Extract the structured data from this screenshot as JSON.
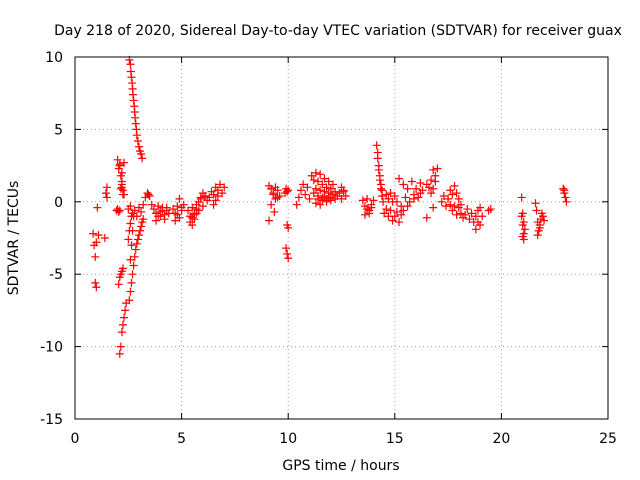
{
  "chart_data": {
    "type": "scatter",
    "title": "Day 218 of 2020, Sidereal Day-to-day VTEC variation (SDTVAR) for receiver guax",
    "xlabel": "GPS time / hours",
    "ylabel": "SDTVAR / TECUs",
    "xlim": [
      0,
      25
    ],
    "ylim": [
      -15,
      10
    ],
    "xticks": [
      0,
      5,
      10,
      15,
      20,
      25
    ],
    "xtick_labels": [
      "0",
      "5",
      "10",
      "15",
      "20",
      "25"
    ],
    "yticks": [
      -15,
      -10,
      -5,
      0,
      5,
      10
    ],
    "ytick_labels": [
      "-15",
      "-10",
      "-5",
      "0",
      "5",
      "10"
    ],
    "grid": true,
    "marker": "+",
    "color": "#ff0000",
    "series": [
      {
        "name": "SDTVAR",
        "x": [
          0.85,
          0.9,
          0.95,
          1.0,
          1.05,
          1.1,
          0.95,
          1.0,
          1.4,
          1.45,
          1.5,
          1.5,
          1.95,
          2.0,
          2.05,
          2.1,
          2.15,
          2.2,
          2.2,
          2.25,
          2.0,
          2.1,
          2.2,
          2.3,
          2.05,
          2.1,
          2.15,
          2.2,
          2.25,
          2.3,
          2.05,
          2.1,
          2.15,
          2.2,
          2.25,
          2.1,
          2.15,
          2.2,
          2.25,
          2.3,
          2.35,
          2.4,
          2.55,
          2.6,
          2.62,
          2.65,
          2.68,
          2.7,
          2.72,
          2.75,
          2.78,
          2.8,
          2.82,
          2.85,
          2.88,
          2.9,
          2.95,
          3.0,
          3.05,
          3.1,
          3.15,
          2.55,
          2.6,
          2.65,
          2.7,
          2.75,
          2.8,
          2.85,
          2.9,
          2.95,
          3.0,
          3.05,
          3.1,
          3.15,
          3.2,
          2.5,
          2.55,
          2.6,
          2.65,
          2.6,
          2.65,
          2.7,
          2.75,
          2.5,
          2.6,
          2.7,
          2.8,
          2.9,
          3.0,
          3.1,
          3.2,
          3.3,
          3.4,
          3.45,
          3.5,
          3.6,
          3.7,
          3.8,
          3.9,
          4.0,
          4.1,
          4.2,
          4.3,
          4.4,
          3.8,
          3.9,
          4.0,
          4.1,
          4.2,
          4.3,
          4.6,
          4.7,
          4.8,
          4.9,
          5.0,
          5.1,
          4.7,
          4.8,
          4.9,
          5.0,
          5.3,
          5.4,
          5.5,
          5.6,
          5.7,
          5.8,
          5.9,
          6.0,
          6.1,
          6.2,
          5.4,
          5.5,
          5.6,
          5.7,
          5.8,
          5.9,
          6.0,
          6.1,
          5.5,
          5.6,
          5.7,
          6.3,
          6.4,
          6.5,
          6.6,
          6.7,
          6.8,
          6.9,
          7.0,
          6.5,
          6.6,
          6.7,
          9.1,
          9.2,
          9.3,
          9.4,
          9.5,
          9.6,
          9.2,
          9.3,
          9.4,
          9.5,
          9.1,
          9.35,
          9.85,
          9.9,
          9.95,
          10.0,
          9.95,
          10.0,
          9.9,
          9.95,
          10.0,
          10.4,
          10.5,
          10.6,
          10.7,
          10.8,
          10.9,
          11.0,
          11.1,
          11.2,
          11.3,
          11.4,
          11.5,
          11.6,
          11.7,
          11.8,
          11.9,
          12.0,
          12.1,
          12.2,
          11.2,
          11.3,
          11.4,
          11.5,
          11.6,
          11.7,
          11.8,
          11.9,
          12.0,
          12.1,
          12.2,
          12.3,
          11.3,
          11.4,
          11.5,
          11.6,
          11.7,
          11.8,
          11.9,
          12.0,
          12.4,
          12.5,
          12.6,
          12.7,
          12.5,
          12.6,
          13.5,
          13.6,
          13.7,
          13.8,
          13.9,
          14.0,
          13.6,
          13.7,
          13.8,
          13.9,
          14.15,
          14.2,
          14.25,
          14.3,
          14.35,
          14.4,
          14.2,
          14.25,
          14.3,
          14.35,
          14.4,
          14.45,
          14.5,
          14.6,
          14.7,
          14.8,
          14.9,
          15.0,
          15.1,
          15.2,
          15.3,
          14.6,
          14.7,
          14.8,
          14.9,
          15.0,
          15.1,
          15.3,
          15.5,
          15.7,
          15.9,
          16.1,
          16.3,
          16.5,
          15.2,
          15.4,
          15.6,
          15.8,
          16.0,
          16.2,
          15.4,
          15.6,
          15.9,
          16.2,
          16.6,
          16.7,
          16.8,
          16.9,
          16.7,
          16.8,
          16.9,
          17.0,
          16.5,
          16.8,
          17.2,
          17.3,
          17.4,
          17.5,
          17.6,
          17.7,
          17.8,
          17.9,
          18.0,
          18.1,
          17.6,
          17.7,
          17.8,
          17.9,
          18.0,
          18.1,
          18.2,
          18.3,
          18.4,
          18.5,
          18.6,
          18.7,
          18.8,
          18.9,
          19.0,
          19.1,
          18.8,
          18.9,
          19.0,
          19.4,
          19.5,
          20.95,
          21.0,
          21.05,
          21.1,
          21.0,
          21.05,
          20.95,
          21.0,
          21.05,
          21.6,
          21.65,
          21.7,
          21.75,
          21.8,
          21.85,
          21.9,
          21.95,
          22.0,
          21.7,
          21.8,
          22.9,
          22.95,
          23.0,
          23.05,
          22.95
        ],
        "y": [
          -2.2,
          -3.0,
          -3.8,
          -2.8,
          -0.4,
          -2.3,
          -5.6,
          -5.9,
          -2.5,
          0.6,
          1.0,
          0.3,
          -0.6,
          -0.5,
          -0.7,
          -0.6,
          0.9,
          1.2,
          1.4,
          0.5,
          2.9,
          2.6,
          2.0,
          2.7,
          2.3,
          2.5,
          1.8,
          1.0,
          0.8,
          0.5,
          -5.7,
          -5.2,
          -5.0,
          -4.8,
          -4.6,
          -10.5,
          -10.0,
          -9.0,
          -8.5,
          -8.0,
          -7.5,
          -7.0,
          9.8,
          9.5,
          9.0,
          8.6,
          8.2,
          7.8,
          7.4,
          7.0,
          6.6,
          6.2,
          5.8,
          5.4,
          5.0,
          4.6,
          4.2,
          3.8,
          3.5,
          3.3,
          3.0,
          -6.8,
          -6.2,
          -5.6,
          -5.0,
          -4.4,
          -3.8,
          -3.3,
          -2.9,
          -2.6,
          -2.3,
          -2.0,
          -1.7,
          -1.4,
          -1.2,
          -2.6,
          -2.0,
          -1.5,
          -1.0,
          -4.0,
          -3.0,
          -2.0,
          -1.0,
          -0.5,
          -0.3,
          -0.8,
          -0.6,
          -1.0,
          -0.4,
          -0.7,
          -0.2,
          0.3,
          0.6,
          0.5,
          0.4,
          -0.2,
          -0.5,
          -0.8,
          -0.3,
          -1.0,
          -0.6,
          -1.2,
          -0.4,
          -0.8,
          -1.3,
          -1.0,
          -0.7,
          -0.4,
          -0.9,
          -0.6,
          -0.5,
          -0.8,
          -0.3,
          -1.1,
          -0.6,
          -0.2,
          -1.3,
          -0.9,
          0.2,
          -0.4,
          -0.6,
          -1.0,
          -0.4,
          -0.8,
          -0.2,
          -0.6,
          0.2,
          -0.3,
          0.4,
          0.1,
          -1.4,
          -1.1,
          -0.9,
          -0.5,
          0.0,
          0.3,
          0.6,
          0.4,
          -1.6,
          -1.2,
          -0.8,
          0.3,
          0.7,
          0.5,
          1.0,
          0.8,
          1.2,
          0.6,
          1.0,
          -0.2,
          0.1,
          0.4,
          1.1,
          0.9,
          0.6,
          0.2,
          0.8,
          0.4,
          -0.2,
          0.5,
          1.0,
          0.3,
          -1.3,
          -0.7,
          0.6,
          0.9,
          0.7,
          0.8,
          -1.6,
          -1.8,
          -3.2,
          -3.6,
          -3.9,
          -0.2,
          0.3,
          0.8,
          1.2,
          0.5,
          1.0,
          0.2,
          1.8,
          1.5,
          2.0,
          1.4,
          1.9,
          1.2,
          1.6,
          1.0,
          1.4,
          0.9,
          1.2,
          0.7,
          0.6,
          0.9,
          0.4,
          0.8,
          0.3,
          0.7,
          0.2,
          0.6,
          0.3,
          0.5,
          0.2,
          0.4,
          -0.1,
          0.2,
          -0.2,
          0.1,
          0.4,
          0.0,
          0.3,
          0.1,
          0.6,
          1.0,
          0.8,
          0.4,
          0.2,
          0.7,
          0.1,
          -0.3,
          0.2,
          -0.6,
          -0.2,
          0.1,
          -0.9,
          -0.5,
          -0.8,
          -0.4,
          3.9,
          3.0,
          2.5,
          1.8,
          1.2,
          0.8,
          3.4,
          2.2,
          1.5,
          0.9,
          0.4,
          0.0,
          -0.8,
          -0.5,
          -1.0,
          -0.6,
          -1.3,
          -1.0,
          -0.7,
          -1.4,
          -0.9,
          0.5,
          0.2,
          0.6,
          0.0,
          0.4,
          0.0,
          -0.3,
          0.3,
          0.0,
          0.5,
          0.3,
          0.8,
          1.2,
          1.6,
          1.2,
          0.9,
          1.4,
          0.9,
          1.3,
          -0.6,
          -0.3,
          0.2,
          0.6,
          1.0,
          1.5,
          2.2,
          1.8,
          0.6,
          0.9,
          1.4,
          2.3,
          -1.1,
          -0.4,
          0.0,
          0.4,
          -0.3,
          0.2,
          0.8,
          0.5,
          1.1,
          0.6,
          0.2,
          -0.2,
          -0.2,
          -0.6,
          -0.3,
          -0.9,
          -0.4,
          -0.8,
          -1.1,
          -0.9,
          -0.5,
          -1.2,
          -0.8,
          -1.4,
          -1.0,
          -0.6,
          -1.6,
          -1.0,
          -1.9,
          -1.4,
          -0.4,
          -0.6,
          -0.5,
          0.3,
          -0.8,
          -1.4,
          -1.9,
          -2.4,
          -2.6,
          -1.0,
          -1.6,
          -2.2,
          -0.1,
          -0.6,
          -1.4,
          -2.0,
          -1.6,
          -1.2,
          -0.8,
          -1.0,
          -1.3,
          -2.3,
          -1.8,
          0.9,
          0.6,
          0.3,
          0.0,
          0.8
        ]
      }
    ]
  }
}
